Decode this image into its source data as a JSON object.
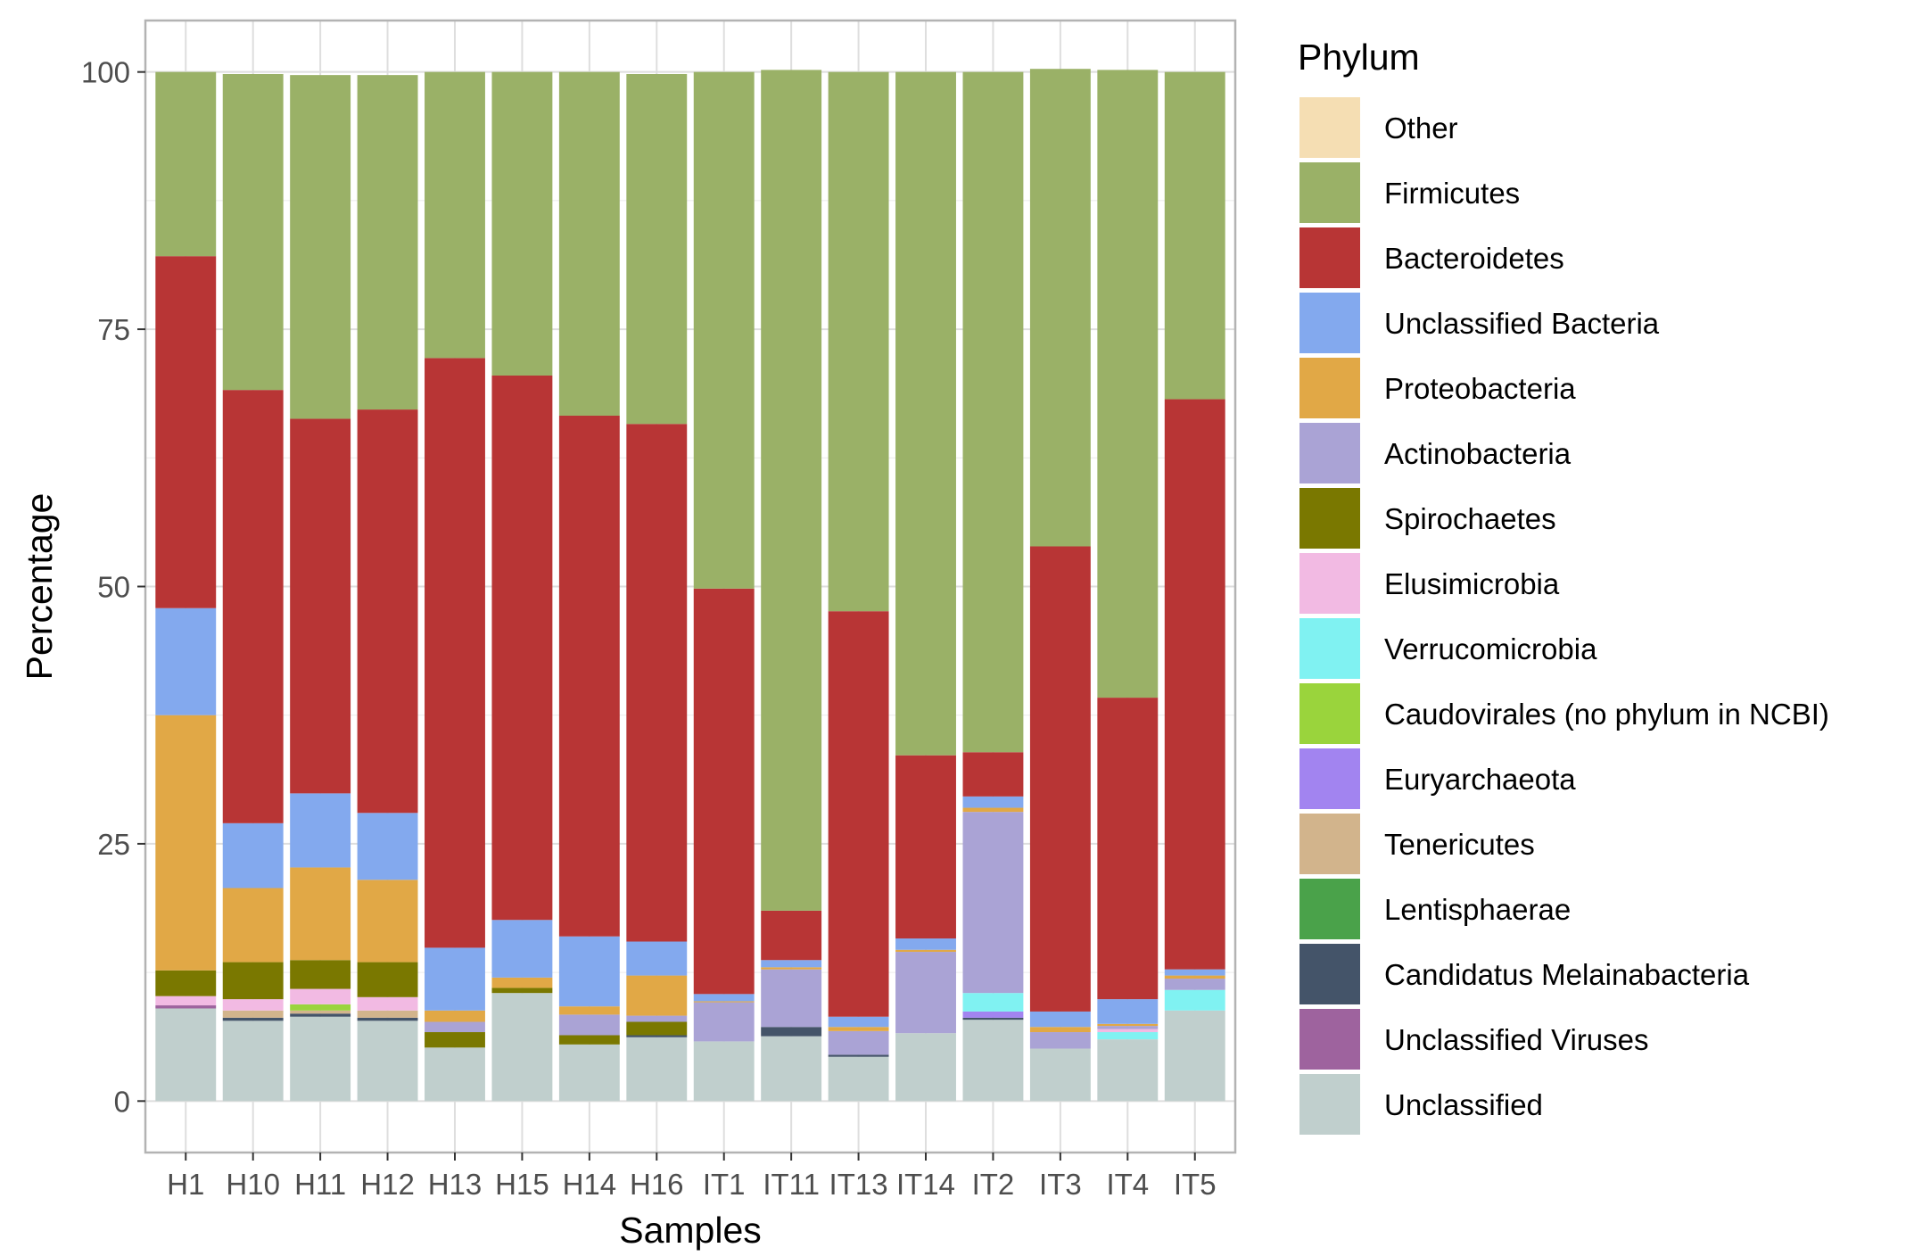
{
  "chart_data": {
    "type": "bar",
    "stacked": true,
    "xlabel": "Samples",
    "ylabel": "Percentage",
    "ylim": [
      -5,
      105
    ],
    "yticks": [
      0,
      25,
      50,
      75,
      100
    ],
    "grid": true,
    "legend_position": "right",
    "legend_title": "Phylum",
    "categories": [
      "H1",
      "H10",
      "H11",
      "H12",
      "H13",
      "H15",
      "H14",
      "H16",
      "IT1",
      "IT11",
      "IT13",
      "IT14",
      "IT2",
      "IT3",
      "IT4",
      "IT5"
    ],
    "series": [
      {
        "name": "Unclassified",
        "color": "#C0CFCD",
        "values": [
          9.0,
          7.8,
          8.2,
          7.8,
          5.2,
          10.5,
          5.5,
          6.2,
          5.8,
          6.3,
          4.3,
          6.6,
          7.9,
          5.1,
          6.0,
          8.8
        ]
      },
      {
        "name": "Unclassified Viruses",
        "color": "#9E639E",
        "values": [
          0.3,
          0,
          0,
          0,
          0,
          0,
          0,
          0,
          0,
          0,
          0,
          0,
          0,
          0,
          0,
          0
        ]
      },
      {
        "name": "Candidatus Melainabacteria",
        "color": "#445469",
        "values": [
          0,
          0.3,
          0.3,
          0.3,
          0,
          0,
          0,
          0.2,
          0,
          0.9,
          0.2,
          0,
          0.2,
          0,
          0,
          0
        ]
      },
      {
        "name": "Lentisphaerae",
        "color": "#4AA24A",
        "values": [
          0,
          0,
          0,
          0,
          0,
          0,
          0,
          0,
          0,
          0,
          0,
          0,
          0,
          0,
          0,
          0
        ]
      },
      {
        "name": "Tenericutes",
        "color": "#D2B48C",
        "values": [
          0,
          0.7,
          0.3,
          0.7,
          0,
          0,
          0,
          0,
          0,
          0,
          0,
          0,
          0,
          0,
          0,
          0
        ]
      },
      {
        "name": "Euryarchaeota",
        "color": "#A284F0",
        "values": [
          0,
          0,
          0,
          0,
          0,
          0,
          0,
          0,
          0,
          0,
          0,
          0,
          0.6,
          0,
          0,
          0
        ]
      },
      {
        "name": "Caudovirales (no phylum in NCBI)",
        "color": "#9AD43C",
        "values": [
          0,
          0,
          0.6,
          0,
          0,
          0,
          0,
          0,
          0,
          0,
          0,
          0,
          0,
          0,
          0,
          0
        ]
      },
      {
        "name": "Verrucomicrobia",
        "color": "#80F2F2",
        "values": [
          0,
          0,
          0,
          0,
          0,
          0,
          0,
          0,
          0,
          0,
          0,
          0,
          1.8,
          0,
          0.7,
          2.0
        ]
      },
      {
        "name": "Elusimicrobia",
        "color": "#F2BAE3",
        "values": [
          0.9,
          1.1,
          1.5,
          1.3,
          0,
          0,
          0,
          0,
          0,
          0,
          0,
          0,
          0,
          0,
          0.3,
          0
        ]
      },
      {
        "name": "Spirochaetes",
        "color": "#7A7800",
        "values": [
          2.5,
          3.6,
          2.8,
          3.4,
          1.5,
          0.5,
          0.9,
          1.3,
          0,
          0,
          0,
          0,
          0,
          0,
          0,
          0
        ]
      },
      {
        "name": "Actinobacteria",
        "color": "#AAA3D5",
        "values": [
          0,
          0,
          0,
          0,
          1.0,
          0,
          2.0,
          0.6,
          3.8,
          5.6,
          2.3,
          7.9,
          17.6,
          1.6,
          0.3,
          1.1
        ]
      },
      {
        "name": "Proteobacteria",
        "color": "#E1A846",
        "values": [
          24.8,
          7.2,
          9.0,
          8.0,
          1.1,
          1.0,
          0.8,
          3.9,
          0.1,
          0.2,
          0.4,
          0.2,
          0.4,
          0.5,
          0.2,
          0.3
        ]
      },
      {
        "name": "Unclassified Bacteria",
        "color": "#83A9EE",
        "values": [
          10.4,
          6.3,
          7.2,
          6.5,
          6.1,
          5.6,
          6.8,
          3.3,
          0.7,
          0.7,
          1.0,
          1.1,
          1.1,
          1.5,
          2.4,
          0.6
        ]
      },
      {
        "name": "Bacteroidetes",
        "color": "#B83535",
        "values": [
          34.2,
          42.1,
          36.4,
          39.2,
          57.3,
          52.9,
          50.6,
          50.3,
          39.4,
          4.8,
          39.4,
          17.8,
          4.3,
          45.2,
          29.3,
          55.4
        ]
      },
      {
        "name": "Firmicutes",
        "color": "#9AB167",
        "values": [
          17.9,
          30.7,
          33.4,
          32.5,
          27.8,
          29.5,
          33.4,
          34.0,
          50.2,
          81.7,
          52.4,
          66.4,
          66.1,
          46.4,
          61.0,
          31.8
        ]
      },
      {
        "name": "Other",
        "color": "#F5DEB3",
        "values": [
          0,
          0,
          0,
          0,
          0,
          0,
          0,
          0,
          0,
          0,
          0,
          0,
          0,
          0,
          0,
          0
        ]
      }
    ],
    "legend_order": [
      "Other",
      "Firmicutes",
      "Bacteroidetes",
      "Unclassified Bacteria",
      "Proteobacteria",
      "Actinobacteria",
      "Spirochaetes",
      "Elusimicrobia",
      "Verrucomicrobia",
      "Caudovirales (no phylum in NCBI)",
      "Euryarchaeota",
      "Tenericutes",
      "Lentisphaerae",
      "Candidatus Melainabacteria",
      "Unclassified Viruses",
      "Unclassified"
    ]
  }
}
